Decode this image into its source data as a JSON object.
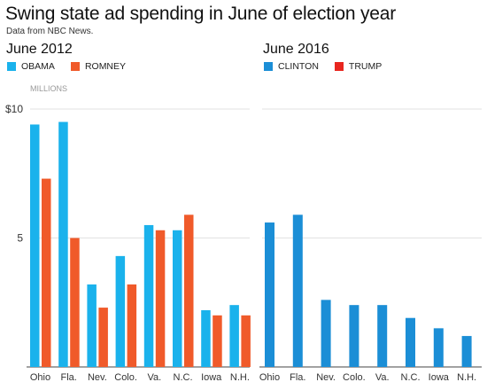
{
  "title": "Swing state ad spending in June of election year",
  "subtitle": "Data from NBC News.",
  "chart_data": [
    {
      "type": "bar",
      "title": "June 2012",
      "categories": [
        "Ohio",
        "Fla.",
        "Nev.",
        "Colo.",
        "Va.",
        "N.C.",
        "Iowa",
        "N.H."
      ],
      "series": [
        {
          "name": "OBAMA",
          "color": "#1ab2ec",
          "values": [
            9.4,
            9.5,
            3.2,
            4.3,
            5.5,
            5.3,
            2.2,
            2.4
          ]
        },
        {
          "name": "ROMNEY",
          "color": "#f05a2a",
          "values": [
            7.3,
            5.0,
            2.3,
            3.2,
            5.3,
            5.9,
            2.0,
            2.0
          ]
        }
      ],
      "y_ticks": [
        {
          "value": 10,
          "label": "$10"
        },
        {
          "value": 5,
          "label": "5"
        }
      ],
      "y_unit": "MILLIONS",
      "ylim": [
        0,
        10
      ]
    },
    {
      "type": "bar",
      "title": "June 2016",
      "categories": [
        "Ohio",
        "Fla.",
        "Nev.",
        "Colo.",
        "Va.",
        "N.C.",
        "Iowa",
        "N.H."
      ],
      "series": [
        {
          "name": "CLINTON",
          "color": "#1b8ed6",
          "values": [
            5.6,
            5.9,
            2.6,
            2.4,
            2.4,
            1.9,
            1.5,
            1.2
          ]
        }
      ],
      "legend_extra": [
        {
          "name": "TRUMP",
          "color": "#e8261f"
        }
      ],
      "ylim": [
        0,
        10
      ]
    }
  ]
}
